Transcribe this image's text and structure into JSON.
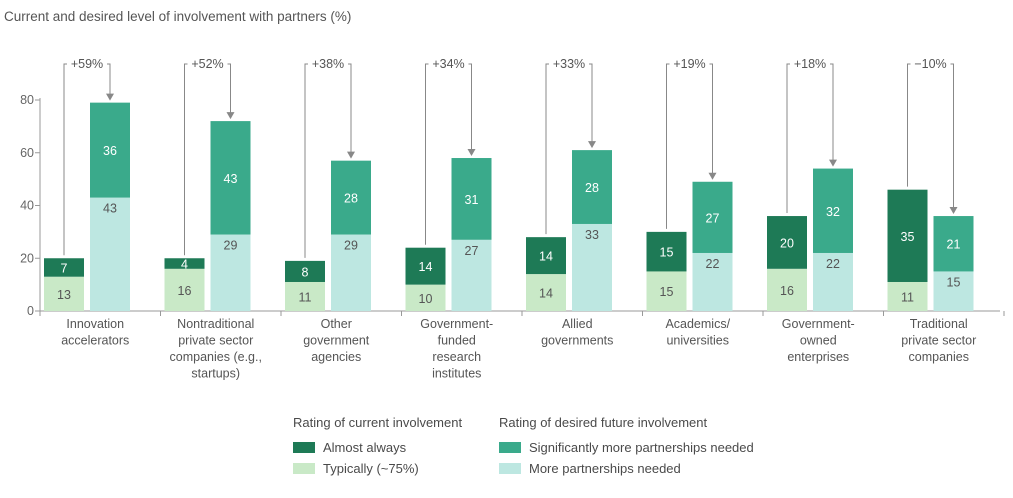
{
  "chart_data": {
    "type": "bar",
    "title": "Current and desired level of involvement with partners (%)",
    "ylim": [
      0,
      80
    ],
    "yticks": [
      "0",
      "20",
      "40",
      "60",
      "80"
    ],
    "categories": [
      [
        "Innovation",
        "accelerators"
      ],
      [
        "Nontraditional",
        "private sector",
        "companies (e.g.,",
        "startups)"
      ],
      [
        "Other",
        "government",
        "agencies"
      ],
      [
        "Government-",
        "funded",
        "research",
        "institutes"
      ],
      [
        "Allied",
        "governments"
      ],
      [
        "Academics/",
        "universities"
      ],
      [
        "Government-",
        "owned",
        "enterprises"
      ],
      [
        "Traditional",
        "private sector",
        "companies"
      ]
    ],
    "changes": [
      "+59%",
      "+52%",
      "+38%",
      "+34%",
      "+33%",
      "+19%",
      "+18%",
      "−10%"
    ],
    "current": {
      "typically": [
        13,
        16,
        11,
        10,
        14,
        15,
        16,
        11
      ],
      "almost_always": [
        7,
        4,
        8,
        14,
        14,
        15,
        20,
        35
      ]
    },
    "desired": {
      "more_needed": [
        43,
        29,
        29,
        27,
        33,
        22,
        22,
        15
      ],
      "significantly_more_needed": [
        36,
        43,
        28,
        31,
        28,
        27,
        32,
        21
      ]
    },
    "colors": {
      "almost_always": "#1e7a56",
      "typically": "#c9e9c7",
      "significantly_more": "#3aaa8b",
      "more_needed": "#bde7e1"
    }
  },
  "legend": {
    "current_header": "Rating of current involvement",
    "desired_header": "Rating of desired future involvement",
    "almost_always": "Almost always",
    "typically": "Typically (~75%)",
    "significantly_more": "Significantly more partnerships needed",
    "more_needed": "More partnerships needed"
  }
}
